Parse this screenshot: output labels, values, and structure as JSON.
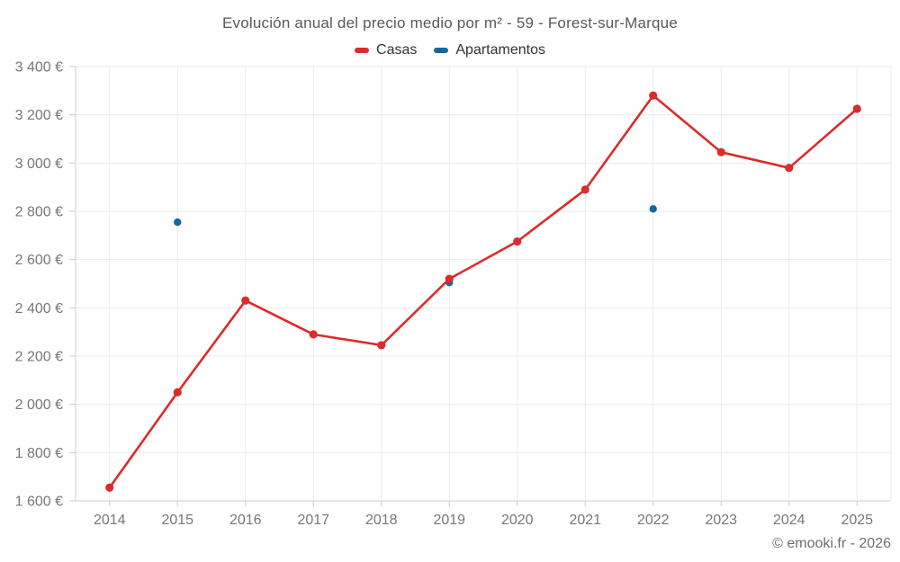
{
  "title": "Evolución anual del precio medio por m² - 59 - Forest-sur-Marque",
  "footer": "© emooki.fr - 2026",
  "colors": {
    "casas": "#dd2b2b",
    "apartamentos": "#1269a2",
    "grid": "#ebebeb",
    "axis": "#cfcfcf",
    "tick": "#c9c9c9",
    "axis_label": "#777777",
    "title_text": "#595959",
    "legend_text": "#333333"
  },
  "chart_data": {
    "type": "line",
    "title": "Evolución anual del precio medio por m² - 59 - Forest-sur-Marque",
    "xlabel": "",
    "ylabel": "",
    "grid": true,
    "legend_position": "top",
    "ylim": [
      1600,
      3400
    ],
    "ytick_step": 200,
    "y_ticks": [
      {
        "v": 1600,
        "label": "1 600 €"
      },
      {
        "v": 1800,
        "label": "1 800 €"
      },
      {
        "v": 2000,
        "label": "2 000 €"
      },
      {
        "v": 2200,
        "label": "2 200 €"
      },
      {
        "v": 2400,
        "label": "2 400 €"
      },
      {
        "v": 2600,
        "label": "2 600 €"
      },
      {
        "v": 2800,
        "label": "2 800 €"
      },
      {
        "v": 3000,
        "label": "3 000 €"
      },
      {
        "v": 3200,
        "label": "3 200 €"
      },
      {
        "v": 3400,
        "label": "3 400 €"
      }
    ],
    "categories": [
      "2014",
      "2015",
      "2016",
      "2017",
      "2018",
      "2019",
      "2020",
      "2021",
      "2022",
      "2023",
      "2024",
      "2025"
    ],
    "series": [
      {
        "name": "Casas",
        "color": "#dd2b2b",
        "style": "line-with-markers",
        "values": [
          1655,
          2050,
          2430,
          2290,
          2245,
          2520,
          2675,
          2890,
          3280,
          3045,
          2980,
          3225
        ]
      },
      {
        "name": "Apartamentos",
        "color": "#1269a2",
        "style": "markers-only",
        "values": [
          null,
          2755,
          null,
          null,
          null,
          2505,
          null,
          null,
          2810,
          null,
          null,
          null
        ]
      }
    ]
  }
}
